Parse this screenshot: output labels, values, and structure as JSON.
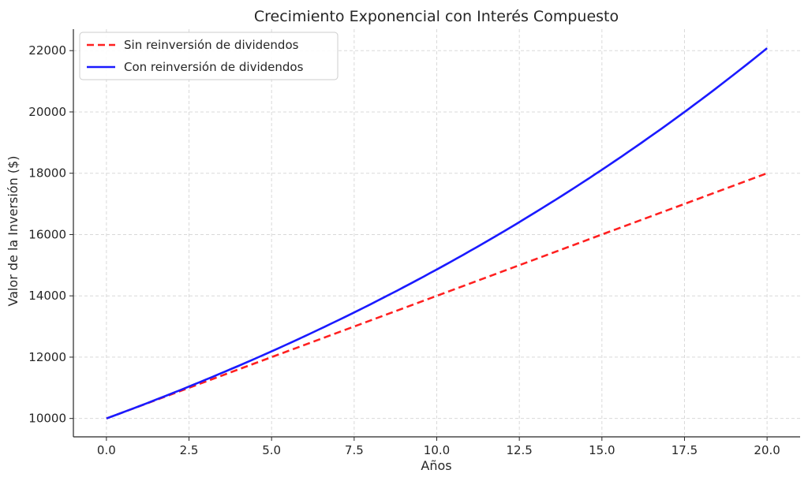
{
  "chart_data": {
    "type": "line",
    "title": "Crecimiento Exponencial con Interés Compuesto",
    "xlabel": "Años",
    "ylabel": "Valor de la Inversión ($)",
    "xlim": [
      -1,
      21
    ],
    "ylim": [
      9400,
      22700
    ],
    "xticks": [
      0.0,
      2.5,
      5.0,
      7.5,
      10.0,
      12.5,
      15.0,
      17.5,
      20.0
    ],
    "xtick_labels": [
      "0.0",
      "2.5",
      "5.0",
      "7.5",
      "10.0",
      "12.5",
      "15.0",
      "17.5",
      "20.0"
    ],
    "yticks": [
      10000,
      12000,
      14000,
      16000,
      18000,
      20000,
      22000
    ],
    "ytick_labels": [
      "10000",
      "12000",
      "14000",
      "16000",
      "18000",
      "20000",
      "22000"
    ],
    "grid": true,
    "legend_position": "top-left",
    "series": [
      {
        "name": "Sin reinversión de dividendos",
        "color": "#ff2020",
        "style": "dashed",
        "x": [
          0,
          2.5,
          5,
          7.5,
          10,
          12.5,
          15,
          17.5,
          20
        ],
        "y": [
          10000,
          11000,
          12000,
          13000,
          14000,
          15000,
          16000,
          17000,
          18000
        ]
      },
      {
        "name": "Con reinversión de dividendos",
        "color": "#1a1aff",
        "style": "solid",
        "x": [
          0,
          2.5,
          5,
          7.5,
          10,
          12.5,
          15,
          17.5,
          20
        ],
        "y": [
          10000,
          11041,
          12190,
          13459,
          14859,
          16406,
          18114,
          19999,
          22080
        ]
      }
    ]
  }
}
